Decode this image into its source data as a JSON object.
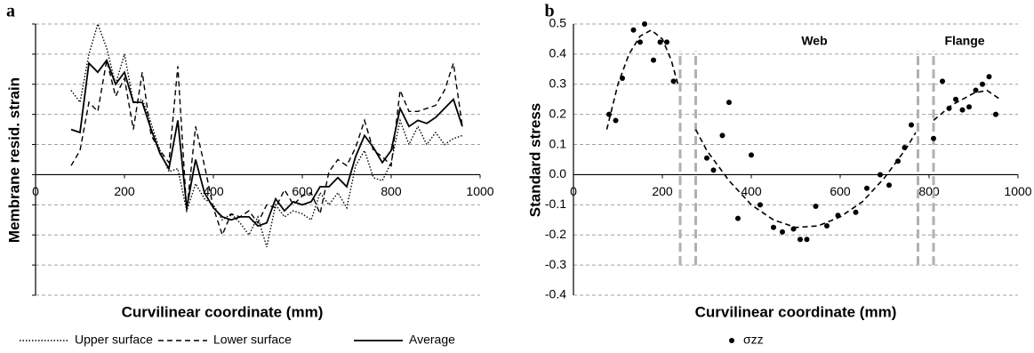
{
  "chart_data": [
    {
      "type": "line",
      "panel_label": "a",
      "xlabel": "Curvilinear coordinate (mm)",
      "ylabel": "Membrane resid. strain",
      "xlim": [
        0,
        1000
      ],
      "xticks": [
        0,
        200,
        400,
        600,
        800,
        1000
      ],
      "ylim": [
        -4,
        5
      ],
      "yticks": [
        -4,
        -3,
        -2,
        -1,
        0,
        1,
        2,
        3,
        4,
        5
      ],
      "ytick_labels": false,
      "grid": true,
      "x": [
        80,
        100,
        120,
        140,
        160,
        180,
        200,
        220,
        240,
        260,
        280,
        300,
        320,
        340,
        360,
        380,
        400,
        420,
        440,
        460,
        480,
        500,
        520,
        540,
        560,
        580,
        600,
        620,
        640,
        660,
        680,
        700,
        720,
        740,
        760,
        780,
        800,
        820,
        840,
        860,
        880,
        900,
        920,
        940,
        960
      ],
      "series": [
        {
          "name": "Upper surface",
          "color": "#000000",
          "style": "dotted",
          "values": [
            2.8,
            2.4,
            4.0,
            5.0,
            4.2,
            3.0,
            4.0,
            2.4,
            2.5,
            1.7,
            0.8,
            0.1,
            0.2,
            -1.2,
            -0.3,
            -0.8,
            -1.0,
            -1.5,
            -1.3,
            -1.6,
            -2.0,
            -1.4,
            -2.4,
            -1.0,
            -1.4,
            -1.2,
            -1.3,
            -1.5,
            -0.6,
            -1.0,
            -0.6,
            -1.1,
            0.3,
            0.8,
            -0.1,
            -0.2,
            0.4,
            1.8,
            1.0,
            1.6,
            1.0,
            1.4,
            1.0,
            1.2,
            1.3
          ]
        },
        {
          "name": "Lower surface",
          "color": "#000000",
          "style": "dashed",
          "values": [
            0.3,
            0.8,
            2.4,
            2.1,
            3.8,
            2.6,
            3.2,
            1.5,
            3.4,
            1.3,
            0.8,
            0.4,
            3.6,
            -1.2,
            1.6,
            0.3,
            -1.1,
            -2.0,
            -1.3,
            -1.4,
            -1.2,
            -1.6,
            -1.0,
            -1.1,
            -0.5,
            -1.0,
            -0.7,
            -0.6,
            -1.3,
            0.1,
            0.5,
            0.3,
            0.9,
            1.8,
            0.8,
            0.6,
            0.3,
            2.8,
            2.1,
            2.1,
            2.2,
            2.3,
            2.8,
            3.7,
            1.6
          ]
        },
        {
          "name": "Average",
          "color": "#000000",
          "style": "solid",
          "values": [
            1.5,
            1.4,
            3.7,
            3.4,
            3.8,
            3.0,
            3.4,
            2.4,
            2.4,
            1.5,
            0.7,
            0.2,
            1.8,
            -1.1,
            0.5,
            -0.6,
            -1.1,
            -1.4,
            -1.5,
            -1.4,
            -1.4,
            -1.7,
            -1.6,
            -0.8,
            -1.2,
            -0.9,
            -1.0,
            -0.9,
            -0.4,
            -0.4,
            -0.1,
            -0.4,
            0.6,
            1.3,
            0.9,
            0.4,
            0.8,
            2.2,
            1.6,
            1.8,
            1.7,
            1.9,
            2.2,
            2.5,
            1.6
          ]
        }
      ]
    },
    {
      "type": "scatter",
      "panel_label": "b",
      "xlabel": "Curvilinear coordinate (mm)",
      "ylabel": "Standard stress",
      "xlim": [
        0,
        1000
      ],
      "xticks": [
        0,
        200,
        400,
        600,
        800,
        1000
      ],
      "ylim": [
        -0.4,
        0.5
      ],
      "yticks": [
        0.5,
        0.4,
        0.3,
        0.2,
        0.1,
        {
          "value": 0,
          "label": "0.0"
        },
        -0.1,
        -0.2,
        -0.3,
        -0.4
      ],
      "ytick_labels": true,
      "grid": true,
      "annotations": [
        "Web",
        "Flange"
      ],
      "vlines": [
        240,
        275,
        775,
        810
      ],
      "vline_range": [
        -0.3,
        0.41
      ],
      "vline_color": "#b0b0b0",
      "series": [
        {
          "name": "σzz",
          "color": "#000000",
          "x": [
            80,
            95,
            110,
            135,
            150,
            160,
            180,
            195,
            210,
            225,
            300,
            315,
            335,
            350,
            370,
            400,
            420,
            450,
            470,
            495,
            510,
            525,
            545,
            570,
            595,
            635,
            660,
            690,
            710,
            730,
            745,
            760,
            810,
            830,
            845,
            860,
            875,
            890,
            905,
            920,
            935,
            950
          ],
          "values": [
            0.2,
            0.18,
            0.32,
            0.48,
            0.44,
            0.5,
            0.38,
            0.44,
            0.44,
            0.31,
            0.055,
            0.015,
            0.13,
            0.24,
            -0.145,
            0.065,
            -0.1,
            -0.175,
            -0.19,
            -0.18,
            -0.215,
            -0.215,
            -0.105,
            -0.17,
            -0.135,
            -0.125,
            -0.045,
            0,
            -0.035,
            0.045,
            0.09,
            0.165,
            0.12,
            0.31,
            0.22,
            0.25,
            0.215,
            0.225,
            0.28,
            0.3,
            0.325,
            0.2
          ]
        }
      ],
      "trend": {
        "color": "#000000",
        "style": "dashed",
        "x": [
          75,
          100,
          125,
          150,
          175,
          200,
          220,
          235,
          null,
          275,
          300,
          350,
          400,
          450,
          500,
          550,
          600,
          650,
          700,
          750,
          770,
          null,
          810,
          850,
          900,
          930,
          960
        ],
        "values": [
          0.15,
          0.3,
          0.4,
          0.46,
          0.48,
          0.45,
          0.38,
          0.3,
          null,
          0.15,
          0.08,
          -0.02,
          -0.1,
          -0.15,
          -0.175,
          -0.17,
          -0.14,
          -0.09,
          -0.01,
          0.09,
          0.14,
          null,
          0.18,
          0.23,
          0.27,
          0.28,
          0.25
        ]
      }
    }
  ]
}
